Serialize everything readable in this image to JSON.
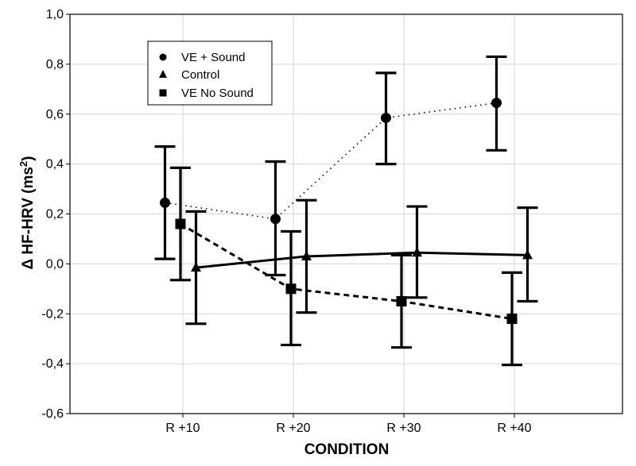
{
  "chart_data": {
    "type": "line",
    "title": "",
    "xlabel": "CONDITION",
    "ylabel_main": "Δ HF-HRV (ms",
    "ylabel_sup": "2",
    "ylabel_end": ")",
    "categories": [
      "R +10",
      "R +20",
      "R +30",
      "R +40"
    ],
    "ylim": [
      -0.6,
      1.0
    ],
    "yticks": [
      -0.6,
      -0.4,
      -0.2,
      0.0,
      0.2,
      0.4,
      0.6,
      0.8,
      1.0
    ],
    "ytick_labels": [
      "-0,6",
      "-0,4",
      "-0,2",
      "0,0",
      "0,2",
      "0,4",
      "0,6",
      "0,8",
      "1,0"
    ],
    "grid": true,
    "legend_position": "top-left",
    "series": [
      {
        "name": "VE + Sound",
        "marker": "circle",
        "line": "dotted",
        "offset": -0.15,
        "values": [
          0.245,
          0.18,
          0.585,
          0.645
        ],
        "err_high": [
          0.47,
          0.41,
          0.765,
          0.83
        ],
        "err_low": [
          0.02,
          -0.045,
          0.4,
          0.455
        ]
      },
      {
        "name": "Control",
        "marker": "triangle",
        "line": "solid",
        "offset": 0.15,
        "values": [
          -0.015,
          0.03,
          0.045,
          0.035
        ],
        "err_high": [
          0.21,
          0.255,
          0.23,
          0.225
        ],
        "err_low": [
          -0.24,
          -0.195,
          -0.135,
          -0.15
        ]
      },
      {
        "name": "VE No Sound",
        "marker": "square",
        "line": "dashed",
        "offset": 0.0,
        "values": [
          0.16,
          -0.1,
          -0.15,
          -0.22
        ],
        "err_high": [
          0.385,
          0.13,
          0.035,
          -0.035
        ],
        "err_low": [
          -0.065,
          -0.325,
          -0.335,
          -0.405
        ]
      }
    ]
  }
}
